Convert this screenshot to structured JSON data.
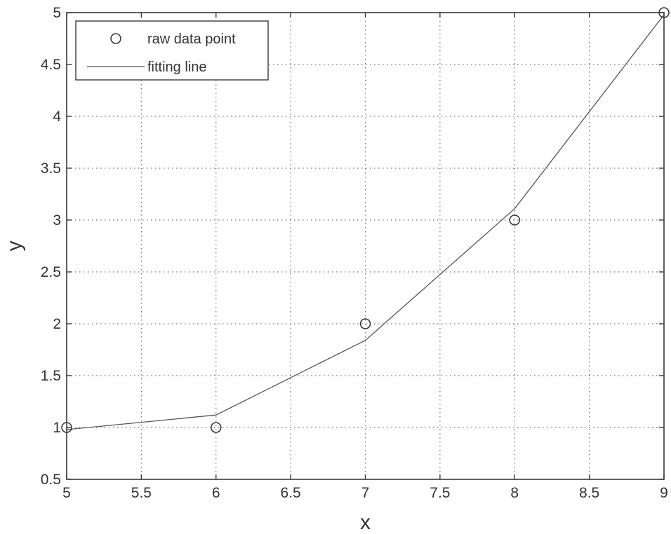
{
  "chart_data": {
    "type": "line",
    "title": "",
    "xlabel": "x",
    "ylabel": "y",
    "xlim": [
      5,
      9
    ],
    "ylim": [
      0.5,
      5
    ],
    "grid": true,
    "legend_position": "top-left",
    "x_ticks": [
      "5",
      "5.5",
      "6",
      "6.5",
      "7",
      "7.5",
      "8",
      "8.5",
      "9"
    ],
    "y_ticks": [
      "0.5",
      "1",
      "1.5",
      "2",
      "2.5",
      "3",
      "3.5",
      "4",
      "4.5",
      "5"
    ],
    "series": [
      {
        "name": "raw data point",
        "style": "markers",
        "marker": "circle",
        "color": "#333333",
        "x": [
          5,
          6,
          7,
          8,
          9
        ],
        "y": [
          1,
          1,
          2,
          3,
          5
        ]
      },
      {
        "name": "fitting line",
        "style": "line",
        "color": "#555555",
        "x": [
          5,
          6,
          7,
          8,
          9
        ],
        "y": [
          0.98,
          1.12,
          1.84,
          3.11,
          4.98
        ]
      }
    ]
  }
}
